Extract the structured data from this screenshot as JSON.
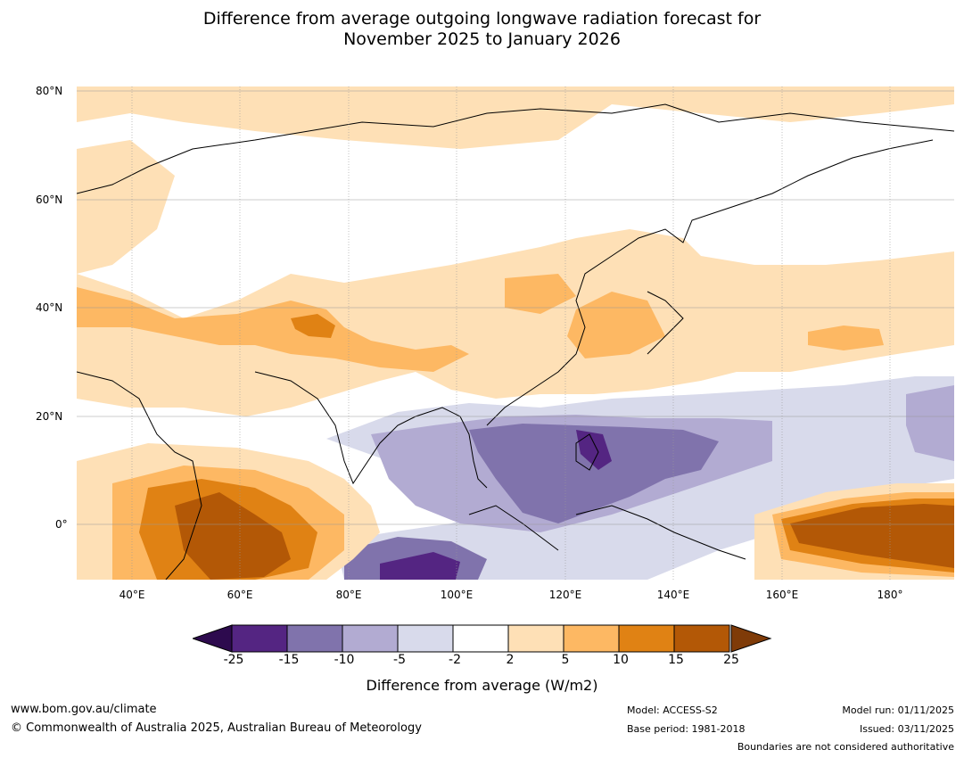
{
  "title": {
    "line1": "Difference from average outgoing longwave radiation forecast for",
    "line2": "November 2025 to January 2026"
  },
  "map": {
    "latitude_labels": [
      "80°N",
      "60°N",
      "40°N",
      "20°N",
      "0°"
    ],
    "longitude_labels": [
      "40°E",
      "60°E",
      "80°E",
      "100°E",
      "120°E",
      "140°E",
      "160°E",
      "180°"
    ],
    "lon_range": [
      30,
      190
    ],
    "lat_range": [
      -10,
      81
    ]
  },
  "legend": {
    "title": "Difference from average (W/m2)",
    "ticks": [
      "-25",
      "-15",
      "-10",
      "-5",
      "-2",
      "2",
      "5",
      "10",
      "15",
      "25"
    ],
    "colors": [
      "#2d0a4e",
      "#542582",
      "#8073ac",
      "#b2abd2",
      "#d8daeb",
      "#ffffff",
      "#fee0b6",
      "#fdb863",
      "#e08214",
      "#b35806",
      "#7f3b08"
    ]
  },
  "colors": {
    "coast": "#000000",
    "border": "#808080",
    "grid": "#999999"
  },
  "footer": {
    "website": "www.bom.gov.au/climate",
    "copyright": "© Commonwealth of Australia 2025, Australian Bureau of Meteorology",
    "model": "Model: ACCESS-S2",
    "base_period": "Base period: 1981-2018",
    "model_run": "Model run: 01/11/2025",
    "issued": "Issued: 03/11/2025",
    "disclaimer": "Boundaries are not considered authoritative"
  }
}
